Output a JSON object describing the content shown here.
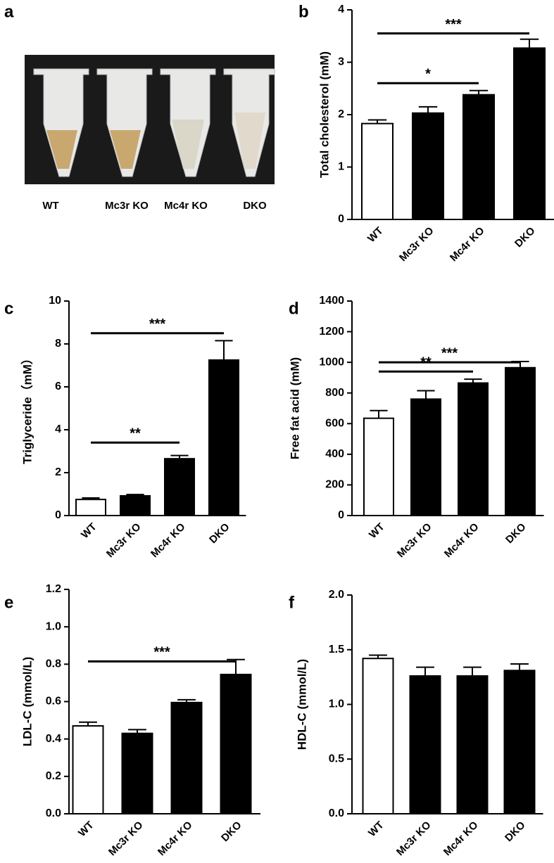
{
  "figure_a": {
    "panel_label": "a",
    "labels": [
      "WT",
      "Mc3r KO",
      "Mc4r KO",
      "DKO"
    ]
  },
  "chart_data": [
    {
      "type": "bar",
      "panel_label": "b",
      "ylabel": "Total cholesterol (mM)",
      "categories": [
        "WT",
        "Mc3r KO",
        "Mc4r KO",
        "DKO"
      ],
      "values": [
        1.83,
        2.03,
        2.38,
        3.27
      ],
      "errors": [
        0.07,
        0.12,
        0.08,
        0.17
      ],
      "colors": [
        "#ffffff",
        "#000000",
        "#000000",
        "#000000"
      ],
      "ylim": [
        0,
        4
      ],
      "yticks": [
        0,
        1,
        2,
        3,
        4
      ],
      "annotations": [
        {
          "from": "WT",
          "to": "DKO",
          "y": 3.55,
          "label": "***"
        },
        {
          "from": "WT",
          "to": "Mc4r KO",
          "y": 2.6,
          "label": "*"
        }
      ]
    },
    {
      "type": "bar",
      "panel_label": "c",
      "ylabel": "Triglyceride（mM）",
      "categories": [
        "WT",
        "Mc3r KO",
        "Mc4r KO",
        "DKO"
      ],
      "values": [
        0.75,
        0.92,
        2.65,
        7.25
      ],
      "errors": [
        0.07,
        0.06,
        0.15,
        0.9
      ],
      "colors": [
        "#ffffff",
        "#000000",
        "#000000",
        "#000000"
      ],
      "ylim": [
        0,
        10
      ],
      "yticks": [
        0,
        2,
        4,
        6,
        8,
        10
      ],
      "annotations": [
        {
          "from": "WT",
          "to": "DKO",
          "y": 8.5,
          "label": "***"
        },
        {
          "from": "WT",
          "to": "Mc4r KO",
          "y": 3.4,
          "label": "**"
        }
      ]
    },
    {
      "type": "bar",
      "panel_label": "d",
      "ylabel": "Free fat acid (mM)",
      "categories": [
        "WT",
        "Mc3r KO",
        "Mc4r KO",
        "DKO"
      ],
      "values": [
        635,
        760,
        865,
        965
      ],
      "errors": [
        50,
        55,
        25,
        40
      ],
      "colors": [
        "#ffffff",
        "#000000",
        "#000000",
        "#000000"
      ],
      "ylim": [
        0,
        1400
      ],
      "yticks": [
        0,
        200,
        400,
        600,
        800,
        1000,
        1200,
        1400
      ],
      "annotations": [
        {
          "from": "WT",
          "to": "DKO",
          "y": 1000,
          "label": "***"
        },
        {
          "from": "WT",
          "to": "Mc4r KO",
          "y": 940,
          "label": "**"
        }
      ]
    },
    {
      "type": "bar",
      "panel_label": "e",
      "ylabel": "LDL-C (mmol/L)",
      "categories": [
        "WT",
        "Mc3r KO",
        "Mc4r KO",
        "DKO"
      ],
      "values": [
        0.47,
        0.43,
        0.595,
        0.745
      ],
      "errors": [
        0.02,
        0.02,
        0.015,
        0.08
      ],
      "colors": [
        "#ffffff",
        "#000000",
        "#000000",
        "#000000"
      ],
      "ylim": [
        0,
        1.2
      ],
      "yticks": [
        {
          "value": 0,
          "label": "0.0"
        },
        0.2,
        0.4,
        0.6,
        0.8,
        {
          "value": 1,
          "label": "1.0"
        },
        1.2
      ],
      "annotations": [
        {
          "from": "WT",
          "to": "DKO",
          "y": 0.815,
          "label": "***"
        }
      ]
    },
    {
      "type": "bar",
      "panel_label": "f",
      "ylabel": "HDL-C (mmol/L)",
      "categories": [
        "WT",
        "Mc3r KO",
        "Mc4r KO",
        "DKO"
      ],
      "values": [
        1.42,
        1.26,
        1.26,
        1.31
      ],
      "errors": [
        0.03,
        0.08,
        0.08,
        0.06
      ],
      "colors": [
        "#ffffff",
        "#000000",
        "#000000",
        "#000000"
      ],
      "ylim": [
        0,
        2
      ],
      "yticks": [
        {
          "value": 0,
          "label": "0.0"
        },
        0.5,
        {
          "value": 1,
          "label": "1.0"
        },
        1.5,
        {
          "value": 2,
          "label": "2.0"
        }
      ],
      "annotations": []
    }
  ]
}
